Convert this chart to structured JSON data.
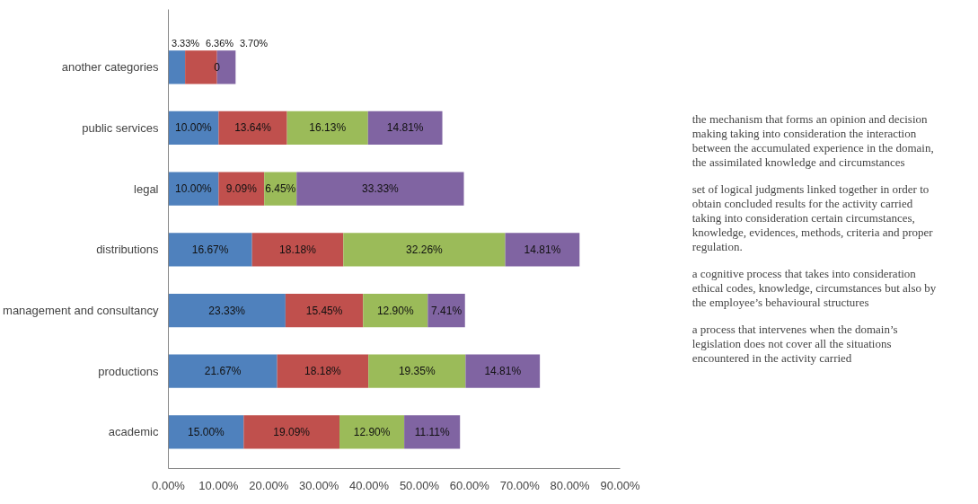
{
  "chart_data": {
    "type": "bar",
    "orientation": "horizontal",
    "stacked": true,
    "categories": [
      "another categories",
      "public services",
      "legal",
      "distributions",
      "management and consultancy",
      "productions",
      "academic"
    ],
    "series": [
      {
        "name": "the mechanism that forms an opinion and decision making taking into consideration the interaction between the accumulated experience in the domain, the assimilated knowledge and circumstances",
        "color": "#4f81bd",
        "values": [
          3.33,
          10.0,
          10.0,
          16.67,
          23.33,
          21.67,
          15.0
        ],
        "value_labels": [
          "3.33%",
          "10.00%",
          "10.00%",
          "16.67%",
          "23.33%",
          "21.67%",
          "15.00%"
        ]
      },
      {
        "name": "set of logical judgments linked together in order to obtain concluded results for the activity carried taking into consideration certain circumstances, knowledge, evidences, methods, criteria and proper regulation.",
        "color": "#c0504d",
        "values": [
          6.36,
          13.64,
          9.09,
          18.18,
          15.45,
          18.18,
          19.09
        ],
        "value_labels": [
          "6.36%",
          "13.64%",
          "9.09%",
          "18.18%",
          "15.45%",
          "18.18%",
          "19.09%"
        ]
      },
      {
        "name": "a cognitive process that takes into consideration ethical codes, knowledge, circumstances but also by the employee’s behavioural structures",
        "color": "#9bbb59",
        "values": [
          0,
          16.13,
          6.45,
          32.26,
          12.9,
          19.35,
          12.9
        ],
        "value_labels": [
          "0",
          "16.13%",
          "6.45%",
          "32.26%",
          "12.90%",
          "19.35%",
          "12.90%"
        ]
      },
      {
        "name": "a process that intervenes when the domain’s legislation does not cover all the situations encountered in the activity carried",
        "color": "#8064a2",
        "values": [
          3.7,
          14.81,
          33.33,
          14.81,
          7.41,
          14.81,
          11.11
        ],
        "value_labels": [
          "3.70%",
          "14.81%",
          "33.33%",
          "14.81%",
          "7.41%",
          "14.81%",
          "11.11%"
        ]
      }
    ],
    "xlim": [
      0,
      90
    ],
    "xticks": [
      {
        "value": 0,
        "label": "0.00%"
      },
      {
        "value": 10,
        "label": "10.00%"
      },
      {
        "value": 20,
        "label": "20.00%"
      },
      {
        "value": 30,
        "label": "30.00%"
      },
      {
        "value": 40,
        "label": "40.00%"
      },
      {
        "value": 50,
        "label": "50.00%"
      },
      {
        "value": 60,
        "label": "60.00%"
      },
      {
        "value": 70,
        "label": "70.00%"
      },
      {
        "value": 80,
        "label": "80.00%"
      },
      {
        "value": 90,
        "label": "90.00%"
      }
    ],
    "grid": false,
    "legend": "right"
  }
}
